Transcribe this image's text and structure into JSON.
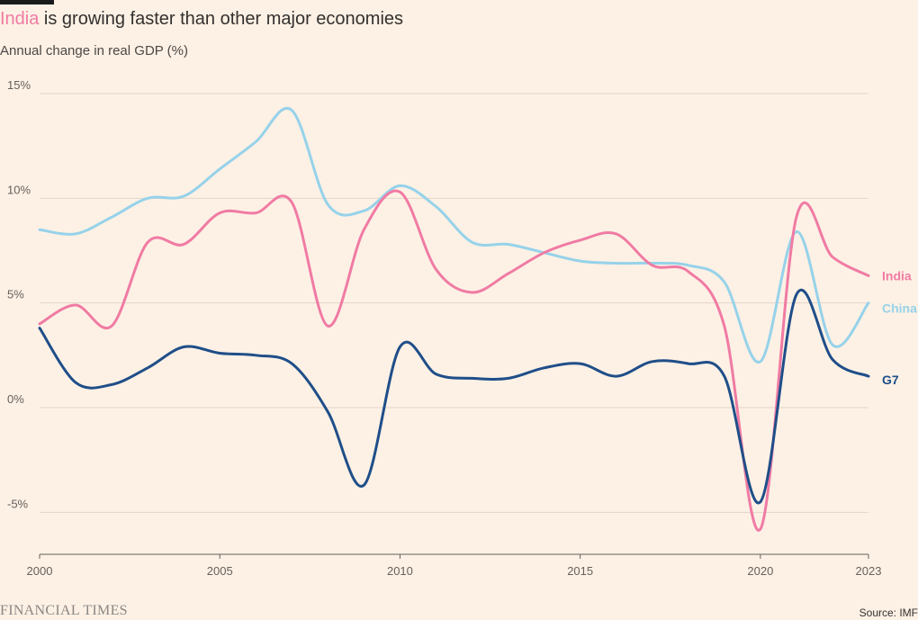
{
  "header": {
    "title_highlight": "India",
    "title_rest": " is growing faster than other major economies",
    "subtitle": "Annual change in real GDP (%)"
  },
  "footer": {
    "brand": "FINANCIAL TIMES",
    "source": "Source: IMF"
  },
  "colors": {
    "background": "#fdf1e5",
    "India": "#f07ba4",
    "China": "#96d2ea",
    "G7": "#1f4e89"
  },
  "chart_data": {
    "type": "line",
    "title": "India is growing faster than other major economies",
    "ylabel": "Annual change in real GDP (%)",
    "xlim": [
      2000,
      2023
    ],
    "ylim": [
      -7,
      15
    ],
    "yticks": [
      15,
      10,
      5,
      0,
      -5
    ],
    "ytick_labels": [
      "15%",
      "10%",
      "5%",
      "0%",
      "-5%"
    ],
    "xticks": [
      2000,
      2005,
      2010,
      2015,
      2020,
      2023
    ],
    "xtick_labels": [
      "2000",
      "2005",
      "2010",
      "2015",
      "2020",
      "2023"
    ],
    "grid": "horizontal",
    "legend": "direct labels at right",
    "x": [
      2000,
      2001,
      2002,
      2003,
      2004,
      2005,
      2006,
      2007,
      2008,
      2009,
      2010,
      2011,
      2012,
      2013,
      2014,
      2015,
      2016,
      2017,
      2018,
      2019,
      2020,
      2021,
      2022,
      2023
    ],
    "series": [
      {
        "name": "China",
        "values": [
          8.5,
          8.3,
          9.1,
          10.0,
          10.1,
          11.4,
          12.7,
          14.2,
          9.7,
          9.4,
          10.6,
          9.6,
          7.9,
          7.8,
          7.4,
          7.0,
          6.9,
          6.9,
          6.8,
          6.0,
          2.2,
          8.4,
          3.0,
          5.0
        ]
      },
      {
        "name": "India",
        "values": [
          4.0,
          4.9,
          3.9,
          7.9,
          7.8,
          9.3,
          9.3,
          9.8,
          3.9,
          8.5,
          10.3,
          6.6,
          5.5,
          6.4,
          7.4,
          8.0,
          8.3,
          6.8,
          6.5,
          3.9,
          -5.8,
          9.1,
          7.2,
          6.3
        ]
      },
      {
        "name": "G7",
        "values": [
          3.8,
          1.2,
          1.1,
          1.9,
          2.9,
          2.6,
          2.5,
          2.1,
          -0.2,
          -3.7,
          2.9,
          1.6,
          1.4,
          1.4,
          1.9,
          2.1,
          1.5,
          2.2,
          2.1,
          1.5,
          -4.5,
          5.4,
          2.3,
          1.5
        ]
      }
    ]
  }
}
